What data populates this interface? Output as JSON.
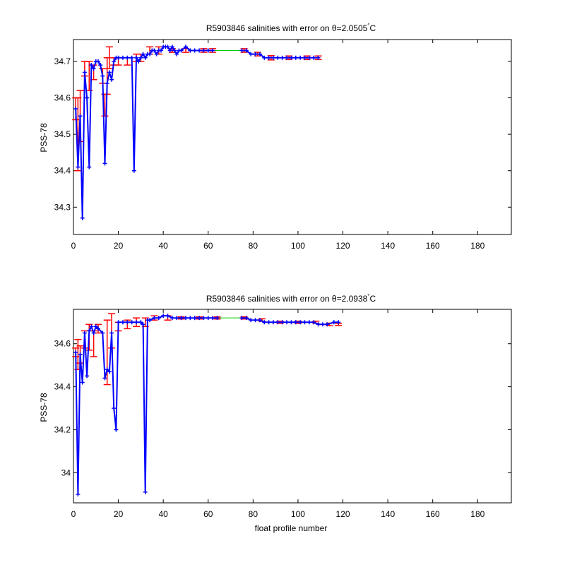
{
  "chart_data": [
    {
      "type": "line",
      "title_main": "R5903846 salinities with error on θ=2.0505",
      "title_unit": "C",
      "xlabel": "",
      "ylabel": "PSS-78",
      "xlim": [
        0,
        195
      ],
      "ylim": [
        34.225,
        34.76
      ],
      "xticks": [
        0,
        20,
        40,
        60,
        80,
        100,
        120,
        140,
        160,
        180
      ],
      "yticks": [
        34.3,
        34.4,
        34.5,
        34.6,
        34.7
      ],
      "ytick_labels": [
        "34.3",
        "34.4",
        "34.5",
        "34.6",
        "34.7"
      ],
      "segments": [
        {
          "x": [
            1,
            2,
            3,
            4,
            5,
            6,
            7,
            8,
            9,
            10,
            11,
            12,
            13,
            14,
            15,
            16,
            17,
            18,
            19,
            20,
            22,
            24,
            26,
            27,
            28,
            29,
            30,
            31,
            32,
            33,
            34,
            35,
            36,
            37,
            38,
            39,
            40,
            41,
            42,
            43,
            44,
            45,
            46,
            47,
            48,
            50,
            52,
            54,
            56,
            58,
            60,
            62
          ],
          "y": [
            34.57,
            34.41,
            34.55,
            34.27,
            34.67,
            34.6,
            34.41,
            34.69,
            34.68,
            34.7,
            34.7,
            34.69,
            34.66,
            34.42,
            34.64,
            34.67,
            34.65,
            34.7,
            34.71,
            34.71,
            34.71,
            34.71,
            34.71,
            34.4,
            34.71,
            34.7,
            34.71,
            34.72,
            34.71,
            34.72,
            34.72,
            34.73,
            34.73,
            34.72,
            34.73,
            34.73,
            34.74,
            34.74,
            34.74,
            34.73,
            34.74,
            34.73,
            34.72,
            34.73,
            34.73,
            34.74,
            34.73,
            34.73,
            34.73,
            34.73,
            34.73,
            34.73
          ]
        },
        {
          "x": [
            75,
            77,
            79,
            81,
            83,
            85,
            87,
            89,
            91,
            93,
            95,
            97,
            99,
            101,
            103,
            105,
            107,
            109
          ],
          "y": [
            34.73,
            34.73,
            34.72,
            34.72,
            34.72,
            34.71,
            34.71,
            34.71,
            34.71,
            34.71,
            34.71,
            34.71,
            34.71,
            34.71,
            34.71,
            34.71,
            34.71,
            34.71
          ]
        }
      ],
      "gap_line": {
        "x": [
          62,
          75
        ],
        "y": [
          34.73,
          34.73
        ]
      },
      "errorbars": [
        {
          "x": 1,
          "y": 34.57,
          "err": 0.03
        },
        {
          "x": 2,
          "y": 34.5,
          "err": 0.1
        },
        {
          "x": 3,
          "y": 34.55,
          "err": 0.07
        },
        {
          "x": 5,
          "y": 34.68,
          "err": 0.02
        },
        {
          "x": 7,
          "y": 34.66,
          "err": 0.04
        },
        {
          "x": 9,
          "y": 34.67,
          "err": 0.02
        },
        {
          "x": 13,
          "y": 34.66,
          "err": 0.02
        },
        {
          "x": 14,
          "y": 34.58,
          "err": 0.03
        },
        {
          "x": 15,
          "y": 34.66,
          "err": 0.05
        },
        {
          "x": 16,
          "y": 34.71,
          "err": 0.03
        },
        {
          "x": 18,
          "y": 34.7,
          "err": 0.01
        },
        {
          "x": 20,
          "y": 34.7,
          "err": 0.01
        },
        {
          "x": 24,
          "y": 34.7,
          "err": 0.01
        },
        {
          "x": 28,
          "y": 34.71,
          "err": 0.01
        },
        {
          "x": 30,
          "y": 34.71,
          "err": 0.01
        },
        {
          "x": 34,
          "y": 34.73,
          "err": 0.01
        },
        {
          "x": 38,
          "y": 34.73,
          "err": 0.01
        },
        {
          "x": 44,
          "y": 34.73,
          "err": 0.005
        },
        {
          "x": 50,
          "y": 34.73,
          "err": 0.005
        },
        {
          "x": 58,
          "y": 34.73,
          "err": 0.005
        },
        {
          "x": 62,
          "y": 34.73,
          "err": 0.005
        },
        {
          "x": 76,
          "y": 34.73,
          "err": 0.005
        },
        {
          "x": 82,
          "y": 34.72,
          "err": 0.005
        },
        {
          "x": 88,
          "y": 34.71,
          "err": 0.006
        },
        {
          "x": 96,
          "y": 34.71,
          "err": 0.005
        },
        {
          "x": 104,
          "y": 34.71,
          "err": 0.005
        },
        {
          "x": 109,
          "y": 34.71,
          "err": 0.005
        }
      ]
    },
    {
      "type": "line",
      "title_main": "R5903846 salinities with error on θ=2.0938",
      "title_unit": "C",
      "xlabel": "float profile number",
      "ylabel": "PSS-78",
      "xlim": [
        0,
        195
      ],
      "ylim": [
        33.86,
        34.76
      ],
      "xticks": [
        0,
        20,
        40,
        60,
        80,
        100,
        120,
        140,
        160,
        180
      ],
      "yticks": [
        34.0,
        34.2,
        34.4,
        34.6
      ],
      "ytick_labels": [
        "34",
        "34.2",
        "34.4",
        "34.6"
      ],
      "segments": [
        {
          "x": [
            1,
            2,
            3,
            4,
            5,
            6,
            7,
            8,
            9,
            10,
            11,
            13,
            14,
            15,
            16,
            17,
            18,
            19,
            20,
            22,
            24,
            26,
            28,
            30,
            31,
            32,
            33,
            34,
            36,
            38,
            40,
            42,
            44,
            46,
            48,
            50,
            52,
            54,
            56,
            58,
            60,
            62,
            64
          ],
          "y": [
            34.56,
            33.9,
            34.55,
            34.42,
            34.65,
            34.45,
            34.66,
            34.68,
            34.65,
            34.68,
            34.67,
            34.65,
            34.44,
            34.48,
            34.47,
            34.65,
            34.3,
            34.2,
            34.7,
            34.7,
            34.7,
            34.7,
            34.7,
            34.7,
            34.69,
            33.91,
            34.71,
            34.71,
            34.72,
            34.72,
            34.73,
            34.73,
            34.72,
            34.72,
            34.72,
            34.72,
            34.72,
            34.72,
            34.72,
            34.72,
            34.72,
            34.72,
            34.72
          ]
        },
        {
          "x": [
            75,
            77,
            79,
            81,
            83,
            85,
            87,
            89,
            91,
            93,
            95,
            97,
            99,
            101,
            103,
            105,
            107,
            109,
            111,
            113,
            116,
            118
          ],
          "y": [
            34.72,
            34.72,
            34.71,
            34.71,
            34.71,
            34.7,
            34.7,
            34.7,
            34.7,
            34.7,
            34.7,
            34.7,
            34.7,
            34.7,
            34.7,
            34.7,
            34.7,
            34.69,
            34.69,
            34.69,
            34.7,
            34.7
          ]
        }
      ],
      "gap_line": {
        "x": [
          64,
          75
        ],
        "y": [
          34.72,
          34.72
        ]
      },
      "errorbars": [
        {
          "x": 1,
          "y": 34.56,
          "err": 0.02
        },
        {
          "x": 2,
          "y": 34.55,
          "err": 0.07
        },
        {
          "x": 3,
          "y": 34.55,
          "err": 0.04
        },
        {
          "x": 5,
          "y": 34.62,
          "err": 0.04
        },
        {
          "x": 7,
          "y": 34.63,
          "err": 0.06
        },
        {
          "x": 9,
          "y": 34.6,
          "err": 0.06
        },
        {
          "x": 11,
          "y": 34.67,
          "err": 0.02
        },
        {
          "x": 15,
          "y": 34.56,
          "err": 0.15
        },
        {
          "x": 17,
          "y": 34.66,
          "err": 0.08
        },
        {
          "x": 20,
          "y": 34.68,
          "err": 0.02
        },
        {
          "x": 24,
          "y": 34.69,
          "err": 0.02
        },
        {
          "x": 28,
          "y": 34.7,
          "err": 0.02
        },
        {
          "x": 32,
          "y": 34.7,
          "err": 0.02
        },
        {
          "x": 36,
          "y": 34.72,
          "err": 0.01
        },
        {
          "x": 42,
          "y": 34.72,
          "err": 0.01
        },
        {
          "x": 48,
          "y": 34.72,
          "err": 0.005
        },
        {
          "x": 56,
          "y": 34.72,
          "err": 0.005
        },
        {
          "x": 64,
          "y": 34.72,
          "err": 0.005
        },
        {
          "x": 76,
          "y": 34.72,
          "err": 0.005
        },
        {
          "x": 84,
          "y": 34.71,
          "err": 0.006
        },
        {
          "x": 92,
          "y": 34.7,
          "err": 0.005
        },
        {
          "x": 100,
          "y": 34.7,
          "err": 0.005
        },
        {
          "x": 108,
          "y": 34.7,
          "err": 0.005
        },
        {
          "x": 114,
          "y": 34.69,
          "err": 0.006
        },
        {
          "x": 118,
          "y": 34.69,
          "err": 0.005
        }
      ]
    }
  ]
}
